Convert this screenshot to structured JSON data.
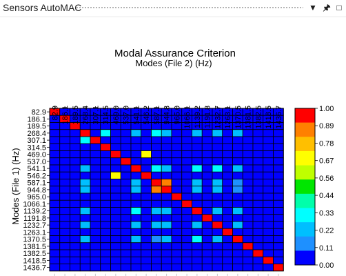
{
  "window": {
    "title": "Sensors AutoMAC",
    "menu_icon": "dropdown-arrow-icon",
    "pin_icon": "pin-icon",
    "maximize_icon": "maximize-icon"
  },
  "chart_data": {
    "type": "heatmap",
    "title": "Modal Assurance Criterion",
    "xlabel": "Modes (File 2) (Hz)",
    "ylabel": "Modes (File 1) (Hz)",
    "x_labels": [
      "82.9",
      "186.1",
      "189.5",
      "268.4",
      "307.1",
      "314.5",
      "469.0",
      "537.0",
      "541.1",
      "546.2",
      "587.1",
      "944.8",
      "965.0",
      "1066.1",
      "1139.2",
      "1191.8",
      "1232.7",
      "1263.1",
      "1370.5",
      "1381.5",
      "1382.5",
      "1418.5",
      "1436.7"
    ],
    "y_labels": [
      "82.9",
      "186.1",
      "189.5",
      "268.4",
      "307.1",
      "314.5",
      "469.0",
      "537.0",
      "541.1",
      "546.2",
      "587.1",
      "944.8",
      "965.0",
      "1066.1",
      "1139.2",
      "1191.8",
      "1232.7",
      "1263.1",
      "1370.5",
      "1381.5",
      "1382.5",
      "1418.5",
      "1436.7"
    ],
    "colorbar_labels": [
      "1.00",
      "0.89",
      "0.78",
      "0.67",
      "0.56",
      "0.44",
      "0.33",
      "0.22",
      "0.11",
      "0.00"
    ],
    "colorbar_colors": [
      "#ff0000",
      "#ff8000",
      "#ffbf00",
      "#ffff00",
      "#bfff00",
      "#00e600",
      "#00ffaa",
      "#00ffff",
      "#00bfff",
      "#1e90ff",
      "#0000ff"
    ],
    "zlim": [
      0,
      1
    ],
    "default_value": 0.05,
    "cells": [
      [
        0,
        0,
        1.0
      ],
      [
        1,
        1,
        1.0
      ],
      [
        2,
        2,
        1.0
      ],
      [
        3,
        3,
        1.0
      ],
      [
        3,
        5,
        0.3
      ],
      [
        3,
        8,
        0.25
      ],
      [
        3,
        10,
        0.3
      ],
      [
        3,
        11,
        0.2
      ],
      [
        3,
        14,
        0.2
      ],
      [
        3,
        16,
        0.2
      ],
      [
        3,
        18,
        0.2
      ],
      [
        4,
        3,
        0.3
      ],
      [
        4,
        4,
        1.0
      ],
      [
        5,
        5,
        1.0
      ],
      [
        6,
        6,
        1.0
      ],
      [
        6,
        9,
        0.72
      ],
      [
        7,
        7,
        1.0
      ],
      [
        8,
        3,
        0.25
      ],
      [
        8,
        8,
        1.0
      ],
      [
        8,
        10,
        0.3
      ],
      [
        8,
        11,
        0.25
      ],
      [
        8,
        14,
        0.3
      ],
      [
        8,
        16,
        0.3
      ],
      [
        8,
        18,
        0.2
      ],
      [
        9,
        6,
        0.72
      ],
      [
        9,
        9,
        1.0
      ],
      [
        10,
        3,
        0.2
      ],
      [
        10,
        8,
        0.2
      ],
      [
        10,
        10,
        1.0
      ],
      [
        10,
        11,
        0.9
      ],
      [
        10,
        14,
        0.2
      ],
      [
        10,
        16,
        0.2
      ],
      [
        10,
        18,
        0.15
      ],
      [
        11,
        3,
        0.2
      ],
      [
        11,
        8,
        0.25
      ],
      [
        11,
        10,
        0.9
      ],
      [
        11,
        11,
        1.0
      ],
      [
        11,
        14,
        0.2
      ],
      [
        11,
        16,
        0.2
      ],
      [
        11,
        18,
        0.15
      ],
      [
        12,
        12,
        1.0
      ],
      [
        13,
        13,
        1.0
      ],
      [
        14,
        3,
        0.2
      ],
      [
        14,
        8,
        0.3
      ],
      [
        14,
        10,
        0.2
      ],
      [
        14,
        11,
        0.2
      ],
      [
        14,
        14,
        1.0
      ],
      [
        14,
        16,
        0.2
      ],
      [
        14,
        18,
        0.2
      ],
      [
        15,
        15,
        1.0
      ],
      [
        16,
        3,
        0.2
      ],
      [
        16,
        8,
        0.25
      ],
      [
        16,
        10,
        0.2
      ],
      [
        16,
        11,
        0.2
      ],
      [
        16,
        14,
        0.2
      ],
      [
        16,
        16,
        1.0
      ],
      [
        16,
        18,
        0.2
      ],
      [
        17,
        17,
        1.0
      ],
      [
        18,
        3,
        0.2
      ],
      [
        18,
        8,
        0.2
      ],
      [
        18,
        10,
        0.15
      ],
      [
        18,
        11,
        0.2
      ],
      [
        18,
        14,
        0.3
      ],
      [
        18,
        16,
        0.2
      ],
      [
        18,
        18,
        1.0
      ],
      [
        19,
        19,
        1.0
      ],
      [
        20,
        20,
        1.0
      ],
      [
        21,
        21,
        1.0
      ],
      [
        22,
        22,
        1.0
      ]
    ]
  }
}
